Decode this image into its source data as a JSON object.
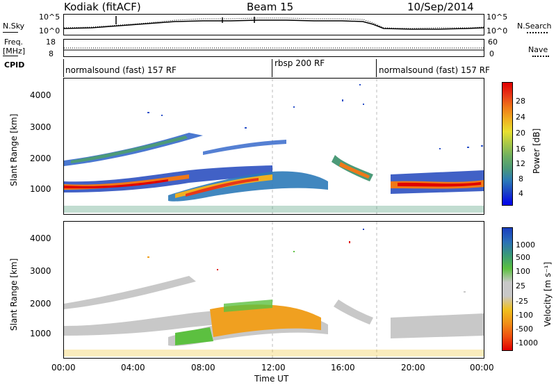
{
  "header": {
    "station": "Kodiak (fitACF)",
    "beam": "Beam 15",
    "date": "10/Sep/2014"
  },
  "top_panels": {
    "nsky_label": "N.Sky",
    "nsky_ticks": [
      "10^5",
      "10^0"
    ],
    "nsearch_label": "N.Search",
    "nsearch_ticks": [
      "10^5",
      "10^0"
    ],
    "freq_label": "Freq.",
    "freq_unit": "[MHz]",
    "freq_ticks": [
      "18",
      "8"
    ],
    "nave_label": "Nave",
    "nave_ticks": [
      "60",
      "0"
    ],
    "cpid_label": "CPID",
    "cpid_segments": [
      {
        "label": "normalsound (fast) 157 RF",
        "start_hour": 0,
        "end_hour": 12
      },
      {
        "label": "rbsp 200 RF",
        "start_hour": 12,
        "end_hour": 18
      },
      {
        "label": "normalsound (fast) 157 RF",
        "start_hour": 18,
        "end_hour": 24
      }
    ]
  },
  "chart_data": [
    {
      "type": "heatmap",
      "name": "power",
      "ylabel": "Slant Range [km]",
      "yticks": [
        "4000",
        "3000",
        "2000",
        "1000"
      ],
      "ylim": [
        180,
        4600
      ],
      "xlim": [
        0,
        24
      ],
      "colorbar_label": "Power [dB]",
      "colorbar_ticks": [
        "28",
        "24",
        "20",
        "16",
        "12",
        "8",
        "4"
      ],
      "colorbar_colors": [
        "#0000ee",
        "#1a3fc8",
        "#2c7ab8",
        "#4c9a78",
        "#6fb060",
        "#a8c848",
        "#e8e030",
        "#f0b020",
        "#f07818",
        "#e83818",
        "#e00000"
      ]
    },
    {
      "type": "heatmap",
      "name": "velocity",
      "ylabel": "Slant Range [km]",
      "yticks": [
        "4000",
        "3000",
        "2000",
        "1000"
      ],
      "ylim": [
        180,
        4600
      ],
      "xlim": [
        0,
        24
      ],
      "xlabel": "Time UT",
      "xticks": [
        "00:00",
        "04:00",
        "08:00",
        "12:00",
        "16:00",
        "20:00",
        "00:00"
      ],
      "colorbar_label": "Velocity [m s⁻¹]",
      "colorbar_ticks": [
        "1000",
        "500",
        "100",
        "25",
        "-25",
        "-100",
        "-500",
        "-1000"
      ],
      "colorbar_colors": [
        "#1a3fc0",
        "#2a6fb8",
        "#3a9a78",
        "#5cc040",
        "#c8c8c8",
        "#c8c8c8",
        "#f0c020",
        "#f09018",
        "#f05010",
        "#e00000"
      ]
    }
  ]
}
